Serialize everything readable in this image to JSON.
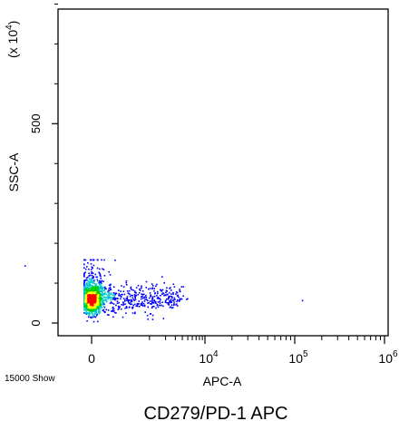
{
  "chart_data": {
    "type": "scatter",
    "title": "CD279/PD-1  APC",
    "xlabel": "APC-A",
    "ylabel": "SSC-A",
    "y_scale_label": "(x 10",
    "y_scale_exp": "4",
    "events_label": "15000 Show",
    "x_scale": "biexponential",
    "xlim": [
      -1000,
      1000000
    ],
    "ylim": [
      -20,
      830
    ],
    "x_ticks": [
      {
        "base": "0",
        "exp": "",
        "value": 0
      },
      {
        "base": "10",
        "exp": "4",
        "value": 10000
      },
      {
        "base": "10",
        "exp": "5",
        "value": 100000
      },
      {
        "base": "10",
        "exp": "6",
        "value": 1000000
      }
    ],
    "y_ticks": [
      {
        "label": "0",
        "value": 0
      },
      {
        "label": "500",
        "value": 500
      }
    ],
    "y_minor_ticks": [
      100,
      200,
      300,
      400,
      600,
      700,
      800
    ],
    "population": {
      "count": 15000,
      "core_x": 0,
      "core_y": 60,
      "x_spread_max": 30000,
      "y_range": [
        5,
        160
      ],
      "sparse_points": [
        [
          -1500,
          145
        ],
        [
          120000,
          58
        ]
      ]
    },
    "colors": {
      "density_low": "#0000ff",
      "density_mid": "#00c8c8",
      "density_high": "#ffff00",
      "density_peak": "#ff0000"
    }
  }
}
